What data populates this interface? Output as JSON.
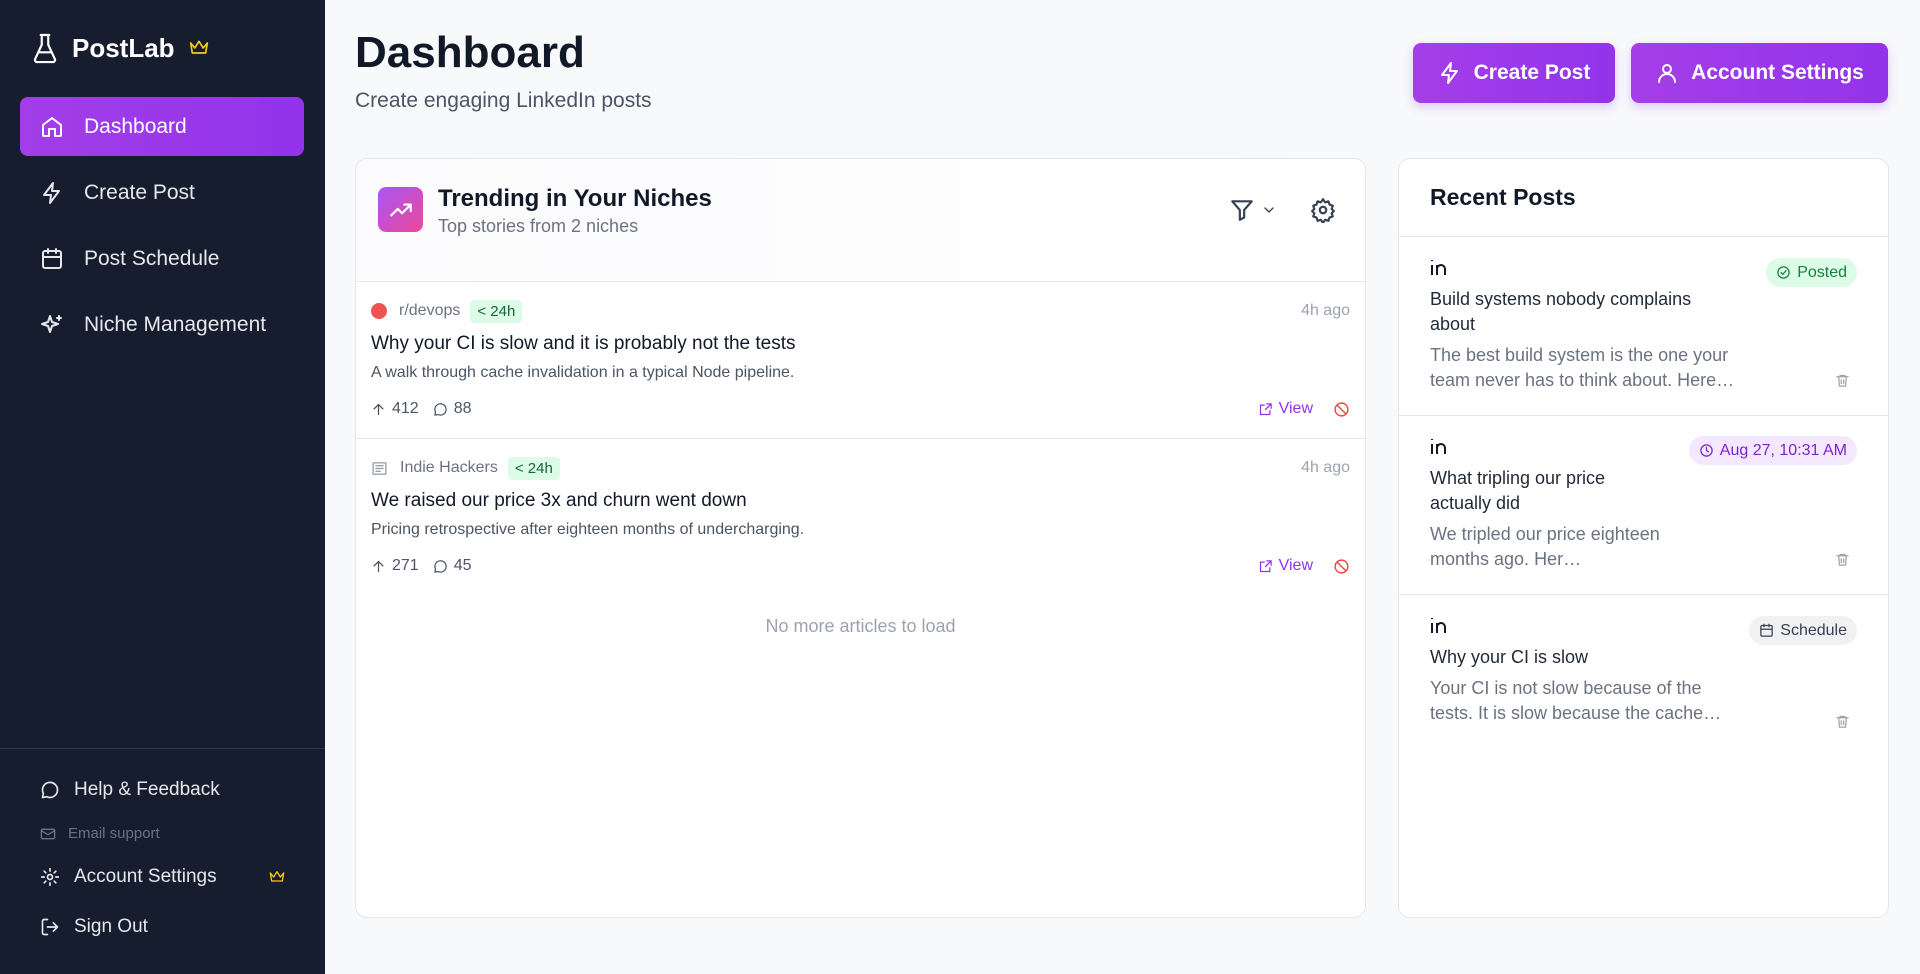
{
  "sidebar": {
    "brand": "PostLab",
    "nav": [
      "Dashboard",
      "Create Post",
      "Post Schedule",
      "Niche Management"
    ],
    "footer": {
      "help": "Help & Feedback",
      "email": "Email support",
      "settings": "Account Settings",
      "signout": "Sign Out"
    }
  },
  "header": {
    "title": "Dashboard",
    "subtitle": "Create engaging LinkedIn posts",
    "buttons": [
      "Create Post",
      "Account Settings"
    ]
  },
  "trending": {
    "title": "Trending in Your Niches",
    "subtitle": "Top stories from 2 niches",
    "articles": [
      {
        "source": "r/devops",
        "age_badge": "< 24h",
        "time": "4h ago",
        "title": "Why your CI is slow and it is probably not the tests",
        "description": "A walk through cache invalidation in a typical Node pipeline.",
        "upvotes": 412,
        "comments": 88,
        "view": "View"
      },
      {
        "source": "Indie Hackers",
        "age_badge": "< 24h",
        "time": "4h ago",
        "title": "We raised our price 3x and churn went down",
        "description": "Pricing retrospective after eighteen months of undercharging.",
        "upvotes": 271,
        "comments": 45,
        "view": "View"
      }
    ],
    "end_note": "No more articles to load"
  },
  "recent": {
    "title": "Recent Posts",
    "posts": [
      {
        "title": "Build systems nobody complains about",
        "excerpt": "The best build system is the one your team never has to think about. Here…",
        "status": "Posted"
      },
      {
        "title": "What tripling our price actually did",
        "excerpt": "We tripled our price eighteen months ago. Her…",
        "status": "Aug 27, 10:31 AM"
      },
      {
        "title": "Why your CI is slow",
        "excerpt": "Your CI is not slow because of the tests. It is slow because the cache…",
        "status": "Schedule"
      }
    ]
  }
}
